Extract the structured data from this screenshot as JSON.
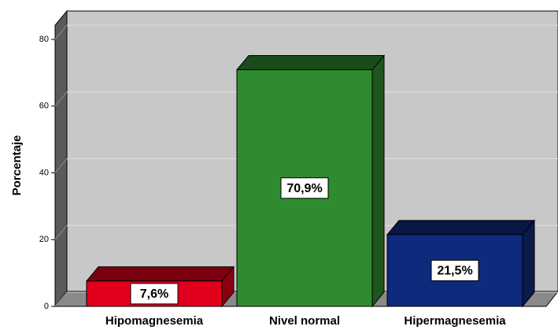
{
  "chart_data": {
    "type": "bar3d",
    "y_label": "Porcentaje",
    "categories": [
      "Hipomagnesemia",
      "Nivel normal",
      "Hipermagnesemia"
    ],
    "values": [
      7.6,
      70.9,
      21.5
    ],
    "value_labels": [
      "7,6%",
      "70,9%",
      "21,5%"
    ],
    "colors": [
      "#e0001b",
      "#2f8b2f",
      "#0e2a7c"
    ],
    "ylim": [
      0,
      80
    ],
    "yticks": [
      0,
      20,
      40,
      60,
      80
    ],
    "grid": true
  }
}
